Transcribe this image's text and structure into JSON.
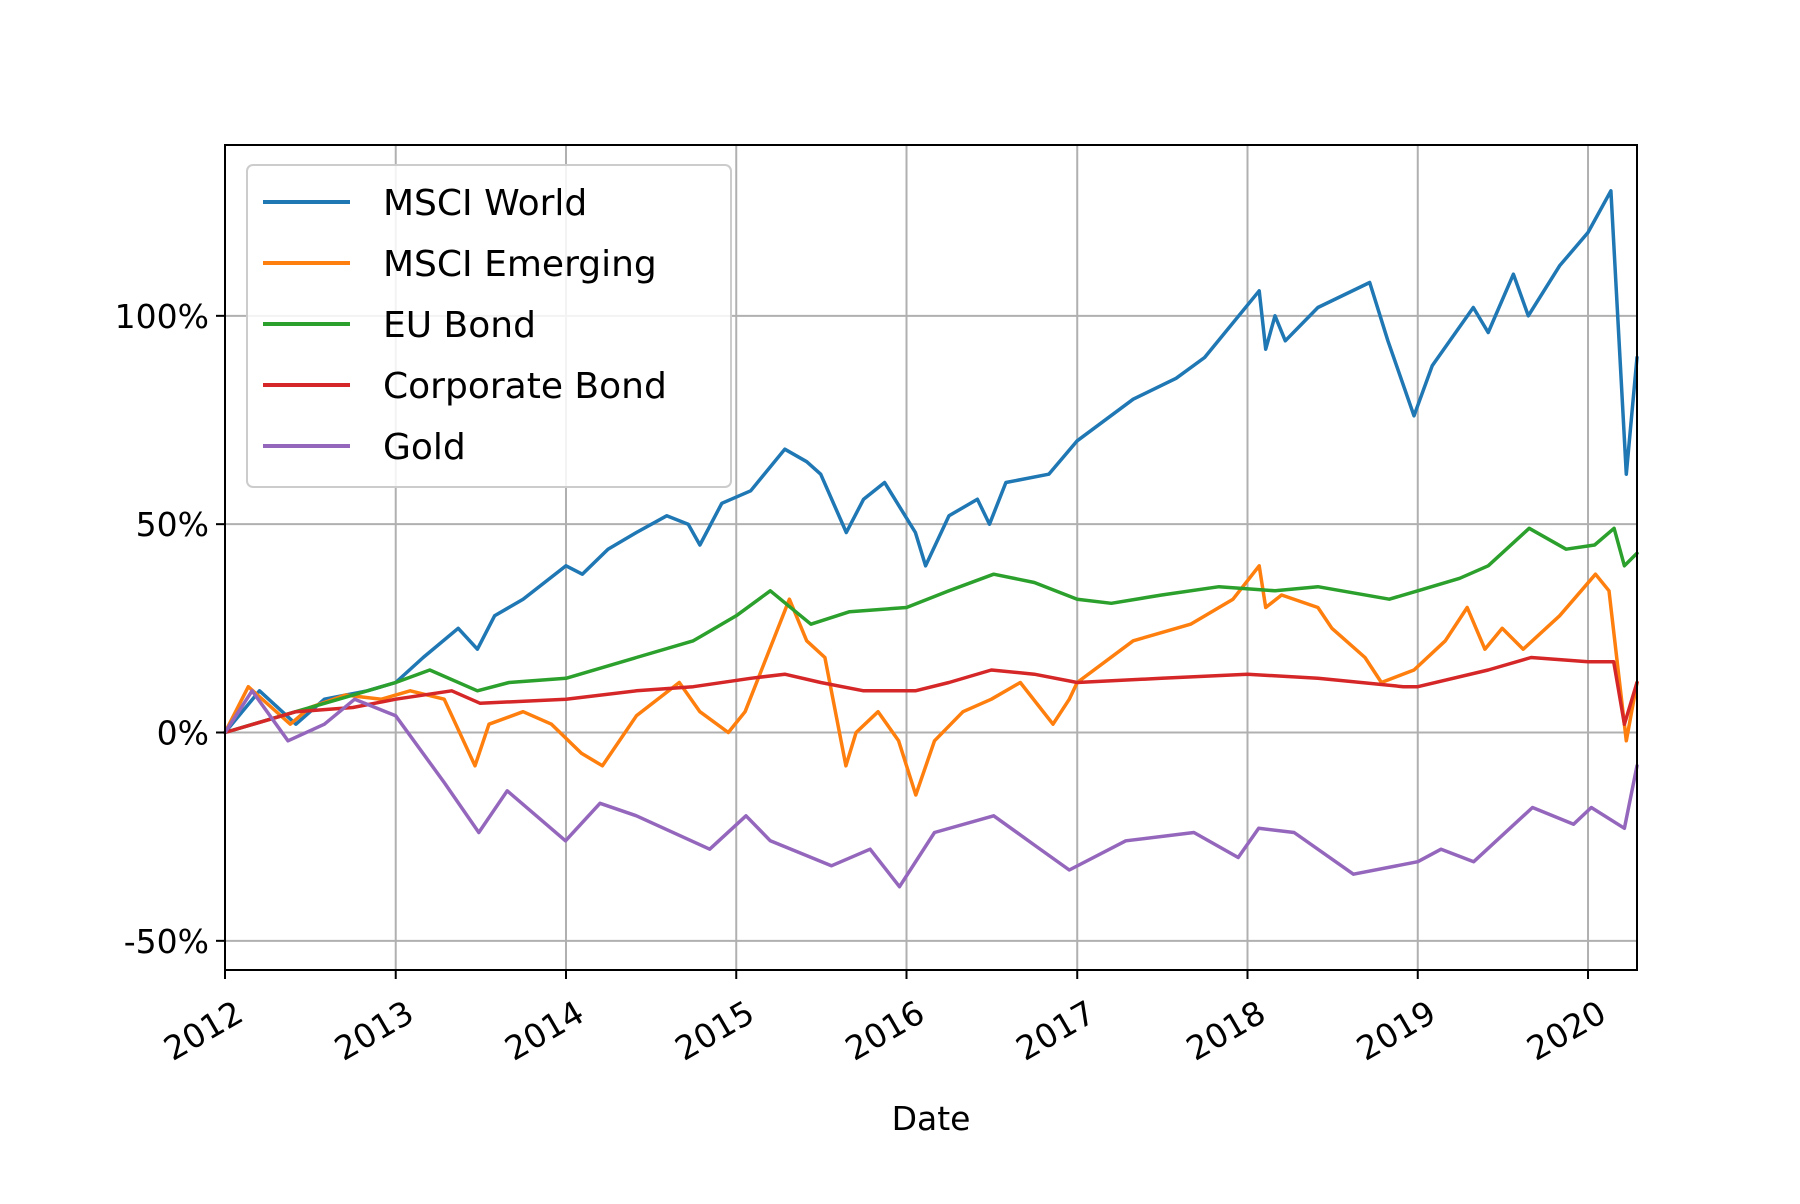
{
  "chart_data": {
    "type": "line",
    "title": "",
    "xlabel": "Date",
    "ylabel": "",
    "xlim": [
      "2012-01-01",
      "2020-04-15"
    ],
    "ylim": [
      -57,
      141
    ],
    "x_ticks": [
      "2012",
      "2013",
      "2014",
      "2015",
      "2016",
      "2017",
      "2018",
      "2019",
      "2020"
    ],
    "y_ticks": [
      -50,
      0,
      50,
      100
    ],
    "y_tick_labels": [
      "-50%",
      "0%",
      "50%",
      "100%"
    ],
    "grid": true,
    "legend_position": "upper-left",
    "series": [
      {
        "name": "MSCI World",
        "color": "#1f77b4",
        "x": [
          "2012-01-01",
          "2012-03-15",
          "2012-06-01",
          "2012-08-01",
          "2012-11-01",
          "2013-01-01",
          "2013-03-01",
          "2013-05-15",
          "2013-06-25",
          "2013-08-01",
          "2013-10-01",
          "2014-01-01",
          "2014-02-05",
          "2014-04-01",
          "2014-06-01",
          "2014-08-05",
          "2014-09-20",
          "2014-10-15",
          "2014-12-01",
          "2015-02-01",
          "2015-04-15",
          "2015-06-01",
          "2015-07-01",
          "2015-08-25",
          "2015-10-01",
          "2015-11-15",
          "2016-01-20",
          "2016-02-11",
          "2016-04-01",
          "2016-06-01",
          "2016-06-27",
          "2016-08-01",
          "2016-11-01",
          "2017-01-01",
          "2017-05-01",
          "2017-08-01",
          "2017-10-01",
          "2018-01-26",
          "2018-02-09",
          "2018-03-01",
          "2018-03-23",
          "2018-06-01",
          "2018-09-20",
          "2018-10-29",
          "2018-12-24",
          "2019-02-01",
          "2019-04-30",
          "2019-06-01",
          "2019-07-25",
          "2019-08-26",
          "2019-11-01",
          "2020-01-01",
          "2020-02-19",
          "2020-03-23",
          "2020-04-15"
        ],
        "values": [
          0,
          10,
          2,
          8,
          10,
          12,
          18,
          25,
          20,
          28,
          32,
          40,
          38,
          44,
          48,
          52,
          50,
          45,
          55,
          58,
          68,
          65,
          62,
          48,
          56,
          60,
          48,
          40,
          52,
          56,
          50,
          60,
          62,
          70,
          80,
          85,
          90,
          106,
          92,
          100,
          94,
          102,
          108,
          94,
          76,
          88,
          102,
          96,
          110,
          100,
          112,
          120,
          130,
          62,
          90
        ]
      },
      {
        "name": "MSCI Emerging",
        "color": "#ff7f0e",
        "x": [
          "2012-01-01",
          "2012-02-20",
          "2012-05-20",
          "2012-07-01",
          "2012-09-15",
          "2012-12-01",
          "2013-02-01",
          "2013-04-15",
          "2013-06-20",
          "2013-07-20",
          "2013-10-01",
          "2013-12-01",
          "2014-02-03",
          "2014-03-20",
          "2014-06-01",
          "2014-09-01",
          "2014-10-15",
          "2014-12-15",
          "2015-01-20",
          "2015-04-25",
          "2015-06-01",
          "2015-07-10",
          "2015-08-24",
          "2015-09-15",
          "2015-11-01",
          "2015-12-15",
          "2016-01-21",
          "2016-03-01",
          "2016-05-01",
          "2016-07-01",
          "2016-09-01",
          "2016-11-10",
          "2016-12-15",
          "2017-01-01",
          "2017-05-01",
          "2017-09-01",
          "2017-12-01",
          "2018-01-26",
          "2018-02-09",
          "2018-03-15",
          "2018-06-01",
          "2018-07-01",
          "2018-09-10",
          "2018-10-15",
          "2018-12-24",
          "2019-03-01",
          "2019-04-17",
          "2019-05-25",
          "2019-07-01",
          "2019-08-15",
          "2019-11-01",
          "2020-01-17",
          "2020-02-15",
          "2020-03-23",
          "2020-04-15"
        ],
        "values": [
          0,
          11,
          2,
          6,
          9,
          8,
          10,
          8,
          -8,
          2,
          5,
          2,
          -5,
          -8,
          4,
          12,
          5,
          0,
          5,
          32,
          22,
          18,
          -8,
          0,
          5,
          -2,
          -15,
          -2,
          5,
          8,
          12,
          2,
          8,
          12,
          22,
          26,
          32,
          40,
          30,
          33,
          30,
          25,
          18,
          12,
          15,
          22,
          30,
          20,
          25,
          20,
          28,
          38,
          34,
          -2,
          12
        ]
      },
      {
        "name": "EU Bond",
        "color": "#2ca02c",
        "x": [
          "2012-01-01",
          "2012-05-01",
          "2012-09-01",
          "2013-01-01",
          "2013-03-15",
          "2013-06-25",
          "2013-09-01",
          "2014-01-01",
          "2014-06-01",
          "2014-10-01",
          "2015-01-01",
          "2015-03-15",
          "2015-06-10",
          "2015-09-01",
          "2016-01-01",
          "2016-04-01",
          "2016-07-06",
          "2016-10-01",
          "2017-01-01",
          "2017-03-15",
          "2017-07-01",
          "2017-11-01",
          "2018-03-01",
          "2018-06-01",
          "2018-11-01",
          "2019-01-01",
          "2019-04-01",
          "2019-06-01",
          "2019-08-28",
          "2019-11-15",
          "2020-01-15",
          "2020-02-26",
          "2020-03-19",
          "2020-04-15"
        ],
        "values": [
          0,
          4,
          8,
          12,
          15,
          10,
          12,
          13,
          18,
          22,
          28,
          34,
          26,
          29,
          30,
          34,
          38,
          36,
          32,
          31,
          33,
          35,
          34,
          35,
          32,
          34,
          37,
          40,
          49,
          44,
          45,
          49,
          40,
          43
        ]
      },
      {
        "name": "Corporate Bond",
        "color": "#d62728",
        "x": [
          "2012-01-01",
          "2012-06-01",
          "2012-10-01",
          "2013-01-01",
          "2013-05-01",
          "2013-07-01",
          "2014-01-01",
          "2014-06-01",
          "2014-10-01",
          "2015-02-01",
          "2015-04-15",
          "2015-07-01",
          "2015-10-01",
          "2016-01-20",
          "2016-04-01",
          "2016-07-01",
          "2016-10-01",
          "2017-01-01",
          "2017-07-01",
          "2018-01-01",
          "2018-06-01",
          "2018-12-01",
          "2019-01-01",
          "2019-06-01",
          "2019-09-01",
          "2020-01-01",
          "2020-02-25",
          "2020-03-19",
          "2020-04-15"
        ],
        "values": [
          0,
          5,
          6,
          8,
          10,
          7,
          8,
          10,
          11,
          13,
          14,
          12,
          10,
          10,
          12,
          15,
          14,
          12,
          13,
          14,
          13,
          11,
          11,
          15,
          18,
          17,
          17,
          2,
          12
        ]
      },
      {
        "name": "Gold",
        "color": "#9467bd",
        "x": [
          "2012-01-01",
          "2012-02-28",
          "2012-05-15",
          "2012-08-01",
          "2012-10-05",
          "2013-01-01",
          "2013-04-15",
          "2013-06-28",
          "2013-08-28",
          "2013-12-31",
          "2014-03-15",
          "2014-06-01",
          "2014-11-05",
          "2015-01-22",
          "2015-03-15",
          "2015-07-24",
          "2015-10-15",
          "2015-12-17",
          "2016-03-01",
          "2016-07-06",
          "2016-10-01",
          "2016-12-15",
          "2017-04-15",
          "2017-09-08",
          "2017-12-12",
          "2018-01-25",
          "2018-04-11",
          "2018-08-16",
          "2019-01-01",
          "2019-02-20",
          "2019-05-01",
          "2019-09-04",
          "2019-12-01",
          "2020-01-08",
          "2020-03-19",
          "2020-04-15"
        ],
        "values": [
          0,
          10,
          -2,
          2,
          8,
          4,
          -12,
          -24,
          -14,
          -26,
          -17,
          -20,
          -28,
          -20,
          -26,
          -32,
          -28,
          -37,
          -24,
          -20,
          -27,
          -33,
          -26,
          -24,
          -30,
          -23,
          -24,
          -34,
          -31,
          -28,
          -31,
          -18,
          -22,
          -18,
          -23,
          -8
        ]
      }
    ]
  }
}
